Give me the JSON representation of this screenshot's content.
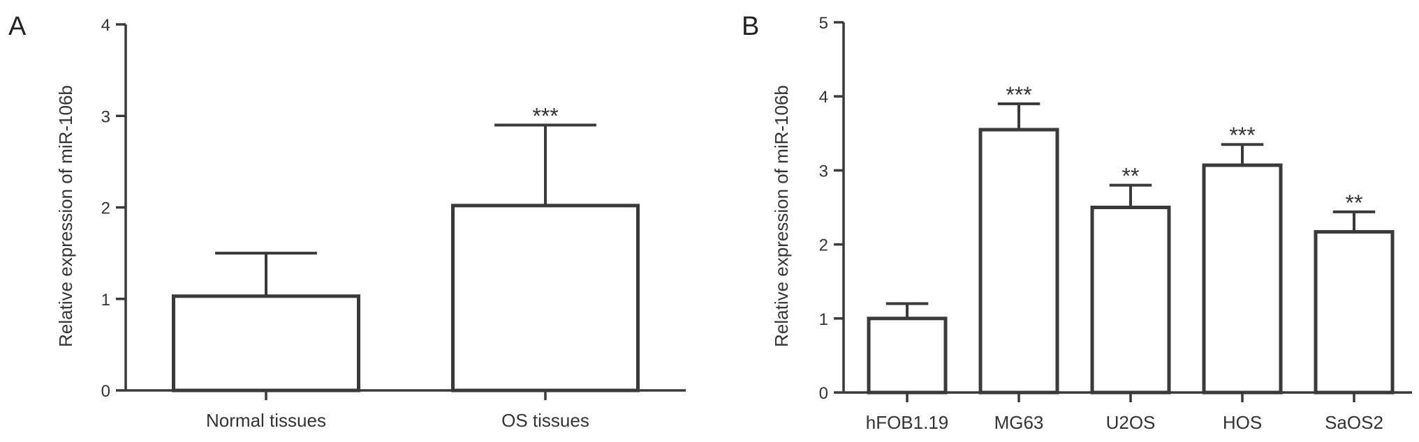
{
  "chart_data": [
    {
      "panel": "A",
      "type": "bar",
      "categories": [
        "Normal tissues",
        "OS tissues"
      ],
      "values": [
        1.03,
        2.02
      ],
      "errors": [
        0.47,
        0.88
      ],
      "annotations": [
        "",
        "***"
      ],
      "xlabel": "",
      "ylabel": "Relative expression of miR-106b",
      "ylim": [
        0,
        4
      ],
      "yticks": [
        "0",
        "1",
        "2",
        "3",
        "4"
      ],
      "grid": false,
      "legend": "none"
    },
    {
      "panel": "B",
      "type": "bar",
      "categories": [
        "hFOB1.19",
        "MG63",
        "U2OS",
        "HOS",
        "SaOS2"
      ],
      "values": [
        1.0,
        3.55,
        2.5,
        3.07,
        2.17
      ],
      "errors": [
        0.2,
        0.35,
        0.3,
        0.28,
        0.27
      ],
      "annotations": [
        "",
        "***",
        "**",
        "***",
        "**"
      ],
      "xlabel": "",
      "ylabel": "Relative expression of miR-106b",
      "ylim": [
        0,
        5
      ],
      "yticks": [
        "0",
        "1",
        "2",
        "3",
        "4",
        "5"
      ],
      "grid": false,
      "legend": "none"
    }
  ]
}
